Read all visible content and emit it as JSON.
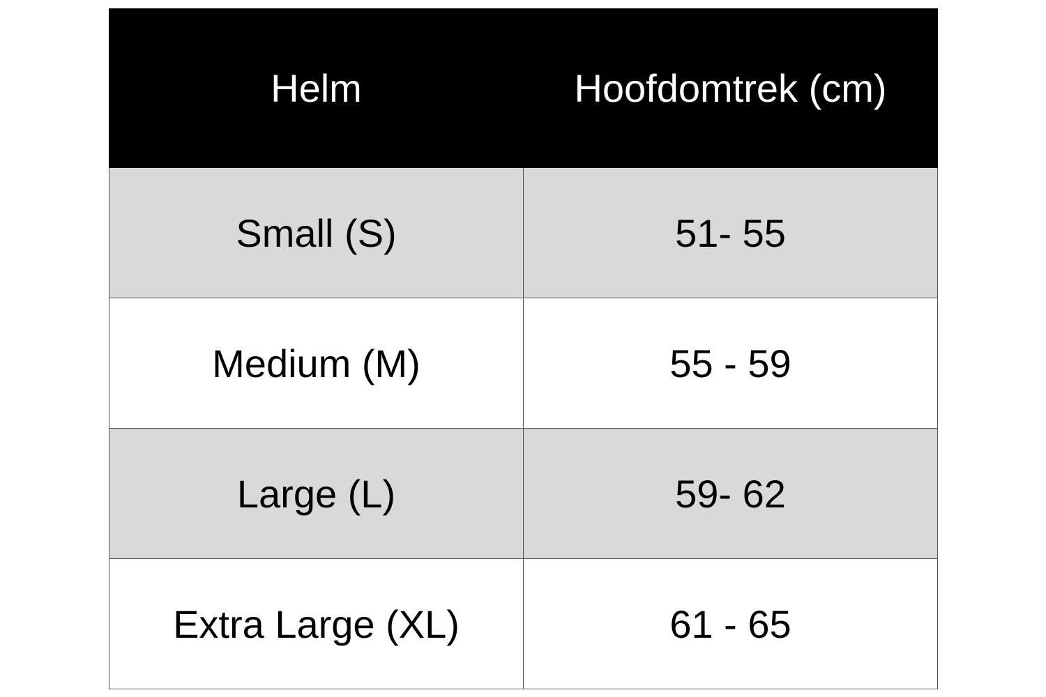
{
  "table": {
    "headers": [
      "Helm",
      "Hoofdomtrek (cm)"
    ],
    "rows": [
      {
        "size": "Small (S)",
        "range": "51- 55"
      },
      {
        "size": "Medium (M)",
        "range": "55 - 59"
      },
      {
        "size": "Large (L)",
        "range": "59- 62"
      },
      {
        "size": "Extra Large (XL)",
        "range": "61 - 65"
      }
    ],
    "colors": {
      "header_bg": "#000000",
      "header_text": "#ffffff",
      "shaded_row": "#d9d9d9",
      "plain_row": "#ffffff"
    }
  }
}
